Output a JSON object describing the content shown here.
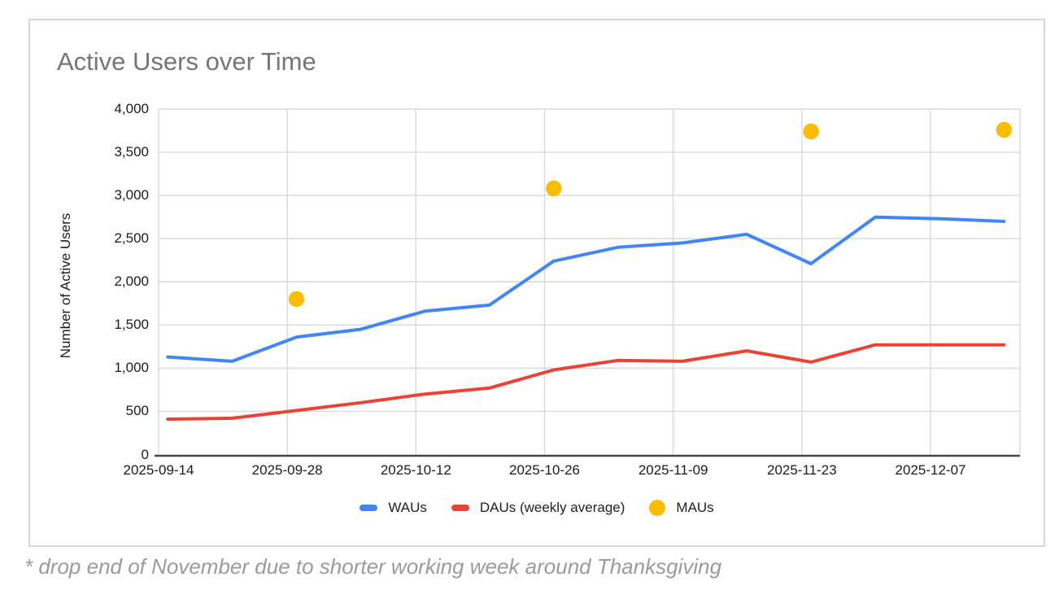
{
  "card": {
    "title": "Active Users over Time"
  },
  "footnote": "* drop end of November due to shorter working week around Thanksgiving",
  "colors": {
    "waus_blue": "#4285F4",
    "daus_red": "#EA4335",
    "maus_yellow": "#FBBC04",
    "title_gray": "#757575",
    "footnote_gray": "#9A9A9A",
    "gridline_gray": "#D9D9D9",
    "axis_line_dark": "#454545",
    "tick_label_black": "#1B1B1B",
    "card_border_gray": "#D6D6D6"
  },
  "legend": {
    "position": "bottom",
    "items": [
      {
        "label": "WAUs",
        "swatch": "line",
        "color": "#4285F4"
      },
      {
        "label": "DAUs (weekly average)",
        "swatch": "line",
        "color": "#EA4335"
      },
      {
        "label": "MAUs",
        "swatch": "circle",
        "color": "#FBBC04"
      }
    ]
  },
  "chart_data": {
    "type": "line",
    "title": "Active Users over Time",
    "xlabel": "",
    "ylabel": "Number of Active Users",
    "ylim": [
      0,
      4000
    ],
    "grid": true,
    "legend_position": "bottom",
    "categories": [
      "2025-09-14",
      "2025-09-21",
      "2025-09-28",
      "2025-10-05",
      "2025-10-12",
      "2025-10-19",
      "2025-10-26",
      "2025-11-02",
      "2025-11-09",
      "2025-11-16",
      "2025-11-23",
      "2025-11-30",
      "2025-12-07",
      "2025-12-14"
    ],
    "series": [
      {
        "name": "WAUs",
        "type": "line",
        "color": "#4285F4",
        "values": [
          1130,
          1080,
          1360,
          1450,
          1660,
          1730,
          2240,
          2400,
          2450,
          2550,
          2210,
          2750,
          2730,
          2700
        ]
      },
      {
        "name": "DAUs (weekly average)",
        "type": "line",
        "color": "#EA4335",
        "values": [
          410,
          420,
          510,
          600,
          700,
          770,
          980,
          1090,
          1080,
          1200,
          1070,
          1270,
          1270,
          1270
        ]
      },
      {
        "name": "MAUs",
        "type": "scatter",
        "color": "#FBBC04",
        "points": [
          {
            "x": "2025-09-28",
            "value": 1800
          },
          {
            "x": "2025-10-26",
            "value": 3080
          },
          {
            "x": "2025-11-23",
            "value": 3740
          },
          {
            "x": "2025-12-14",
            "value": 3760
          }
        ]
      }
    ],
    "y_ticks": [
      0,
      500,
      1000,
      1500,
      2000,
      2500,
      3000,
      3500,
      4000
    ],
    "y_tick_labels": [
      "0",
      "500",
      "1,000",
      "1,500",
      "2,000",
      "2,500",
      "3,000",
      "3,500",
      "4,000"
    ],
    "x_tick_labels": [
      "2025-09-14",
      "2025-09-28",
      "2025-10-12",
      "2025-10-26",
      "2025-11-09",
      "2025-11-23",
      "2025-12-07"
    ],
    "annotation": "* drop end of November due to shorter working week around Thanksgiving"
  }
}
